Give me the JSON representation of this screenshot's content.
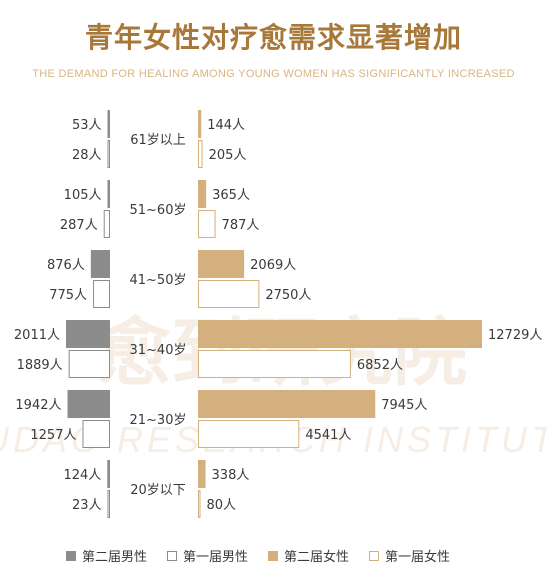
{
  "header": {
    "title": "青年女性对疗愈需求显著增加",
    "subtitle": "THE DEMAND FOR HEALING AMONG YOUNG WOMEN HAS SIGNIFICANTLY INCREASED"
  },
  "watermark": {
    "cn": "愈到研究院",
    "en": "YUDAO RESEARCH INSTITUTE"
  },
  "colors": {
    "male_second": "#8c8c8c",
    "female_second": "#d4b07e",
    "female_first_border": "#d4b07e",
    "male_first_border": "#8c8c8c"
  },
  "chart_data": {
    "type": "bar",
    "orientation": "horizontal-butterfly",
    "categories": [
      "61岁以上",
      "51~60岁",
      "41~50岁",
      "31~40岁",
      "21~30岁",
      "20岁以下"
    ],
    "series": [
      {
        "name": "第二届男性",
        "values": [
          53,
          105,
          876,
          2011,
          1942,
          124
        ]
      },
      {
        "name": "第一届男性",
        "values": [
          28,
          287,
          775,
          1889,
          1257,
          23
        ]
      },
      {
        "name": "第二届女性",
        "values": [
          144,
          365,
          2069,
          12729,
          7945,
          338
        ]
      },
      {
        "name": "第一届女性",
        "values": [
          205,
          787,
          2750,
          6852,
          4541,
          80
        ]
      }
    ],
    "unit": "人",
    "legend_position": "bottom"
  }
}
